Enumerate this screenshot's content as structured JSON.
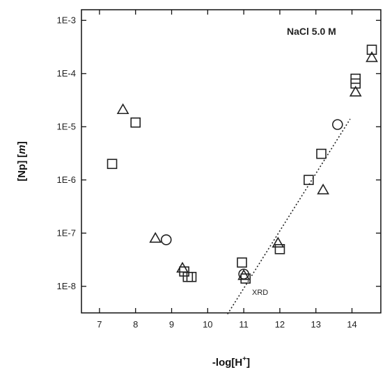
{
  "chart_data": {
    "type": "scatter",
    "title": "",
    "xlabel": "-log[H+]",
    "xlabel_main": "-log[H",
    "xlabel_sup": "+",
    "xlabel_end": "]",
    "ylabel": "[Np] [m]",
    "ylabel_main": "[Np] [",
    "ylabel_italic": "m",
    "ylabel_end": "]",
    "xlim": [
      6.5,
      14.8
    ],
    "ylim_log10": [
      -8.5,
      -2.8
    ],
    "y_scale": "log",
    "x_ticks": [
      7,
      8,
      9,
      10,
      11,
      12,
      13,
      14
    ],
    "x_tick_labels": [
      "7",
      "8",
      "9",
      "10",
      "11",
      "12",
      "13",
      "14"
    ],
    "y_ticks": [
      1e-08,
      1e-07,
      1e-06,
      1e-05,
      0.0001,
      0.001
    ],
    "y_tick_labels": [
      "1E-8",
      "1E-7",
      "1E-6",
      "1E-5",
      "1E-4",
      "1E-3"
    ],
    "annotations": [
      {
        "text": "NaCl 5.0 M",
        "x": 13.4,
        "y": 0.0009
      },
      {
        "text": "XRD",
        "x": 11.55,
        "y": 1.1e-08
      }
    ],
    "series": [
      {
        "marker": "square",
        "points": [
          {
            "x": 7.35,
            "y": 2e-06
          },
          {
            "x": 8.0,
            "y": 1.2e-05
          },
          {
            "x": 9.35,
            "y": 1.9e-08
          },
          {
            "x": 9.45,
            "y": 1.5e-08
          },
          {
            "x": 9.55,
            "y": 1.5e-08
          },
          {
            "x": 10.95,
            "y": 2.8e-08
          },
          {
            "x": 11.05,
            "y": 1.4e-08
          },
          {
            "x": 12.0,
            "y": 5e-08
          },
          {
            "x": 12.8,
            "y": 1e-06
          },
          {
            "x": 13.15,
            "y": 3.1e-06
          },
          {
            "x": 14.1,
            "y": 8e-05
          },
          {
            "x": 14.1,
            "y": 6.5e-05
          },
          {
            "x": 14.55,
            "y": 0.00028
          }
        ]
      },
      {
        "marker": "triangle",
        "points": [
          {
            "x": 7.65,
            "y": 2.1e-05
          },
          {
            "x": 8.55,
            "y": 8e-08
          },
          {
            "x": 9.3,
            "y": 2.2e-08
          },
          {
            "x": 11.0,
            "y": 1.6e-08
          },
          {
            "x": 11.95,
            "y": 6.5e-08
          },
          {
            "x": 13.2,
            "y": 6.5e-07
          },
          {
            "x": 14.1,
            "y": 4.5e-05
          },
          {
            "x": 14.55,
            "y": 0.0002
          }
        ]
      },
      {
        "marker": "circle",
        "points": [
          {
            "x": 8.85,
            "y": 7.5e-08
          },
          {
            "x": 11.0,
            "y": 1.7e-08
          },
          {
            "x": 13.6,
            "y": 1.1e-05
          }
        ]
      }
    ],
    "fit_line": {
      "style": "dotted",
      "points": [
        {
          "x": 10.55,
          "y": 3e-09
        },
        {
          "x": 13.95,
          "y": 1.4e-05
        }
      ]
    }
  }
}
